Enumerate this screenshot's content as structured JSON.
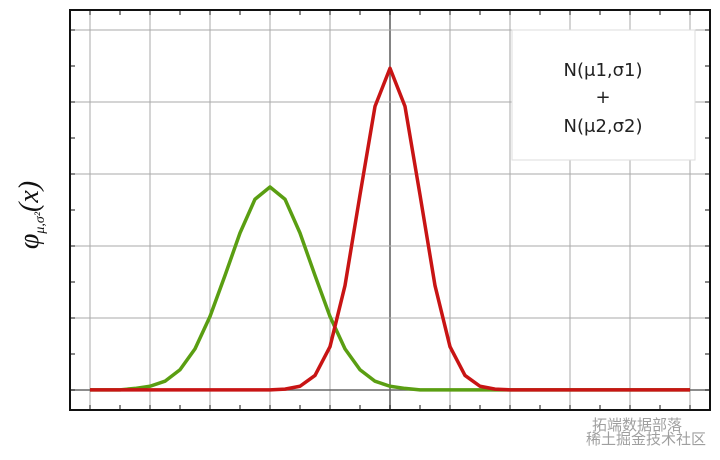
{
  "chart_data": {
    "type": "line",
    "ylabel": {
      "symbol": "φ",
      "subscript": "μ,σ²",
      "argument": "(x)"
    },
    "annotation": [
      "N(μ1,σ1)",
      "+",
      "N(μ2,σ2)"
    ],
    "watermark": [
      "拓端数据部落",
      "稀土掘金技术社区"
    ],
    "xlim": [
      -5.333,
      5.333
    ],
    "ylim": [
      -0.028,
      0.528
    ],
    "grid": true,
    "x": [
      -5,
      -4.75,
      -4.5,
      -4.25,
      -4,
      -3.75,
      -3.5,
      -3.25,
      -3,
      -2.75,
      -2.5,
      -2.25,
      -2,
      -1.75,
      -1.5,
      -1.25,
      -1,
      -0.75,
      -0.5,
      -0.25,
      0,
      0.25,
      0.5,
      0.75,
      1,
      1.25,
      1.5,
      1.75,
      2,
      2.25,
      2.5,
      2.75,
      3,
      3.25,
      3.5,
      3.75,
      4,
      4.25,
      4.5,
      4.75,
      5
    ],
    "series": [
      {
        "color": "#5a9e12",
        "values": [
          0,
          0,
          0,
          0.002,
          0.005,
          0.012,
          0.028,
          0.057,
          0.102,
          0.159,
          0.218,
          0.265,
          0.282,
          0.265,
          0.218,
          0.159,
          0.102,
          0.057,
          0.028,
          0.012,
          0.005,
          0.002,
          0,
          0,
          0,
          0,
          0,
          0,
          0,
          0,
          0,
          0,
          0,
          0,
          0,
          0,
          0,
          0,
          0,
          0,
          0
        ]
      },
      {
        "color": "#c81414",
        "values": [
          0,
          0,
          0,
          0,
          0,
          0,
          0,
          0,
          0,
          0,
          0,
          0,
          0,
          0.001,
          0.005,
          0.02,
          0.06,
          0.145,
          0.271,
          0.394,
          0.447,
          0.394,
          0.271,
          0.145,
          0.06,
          0.02,
          0.005,
          0.001,
          0,
          0,
          0,
          0,
          0,
          0,
          0,
          0,
          0,
          0,
          0,
          0,
          0
        ]
      }
    ]
  }
}
